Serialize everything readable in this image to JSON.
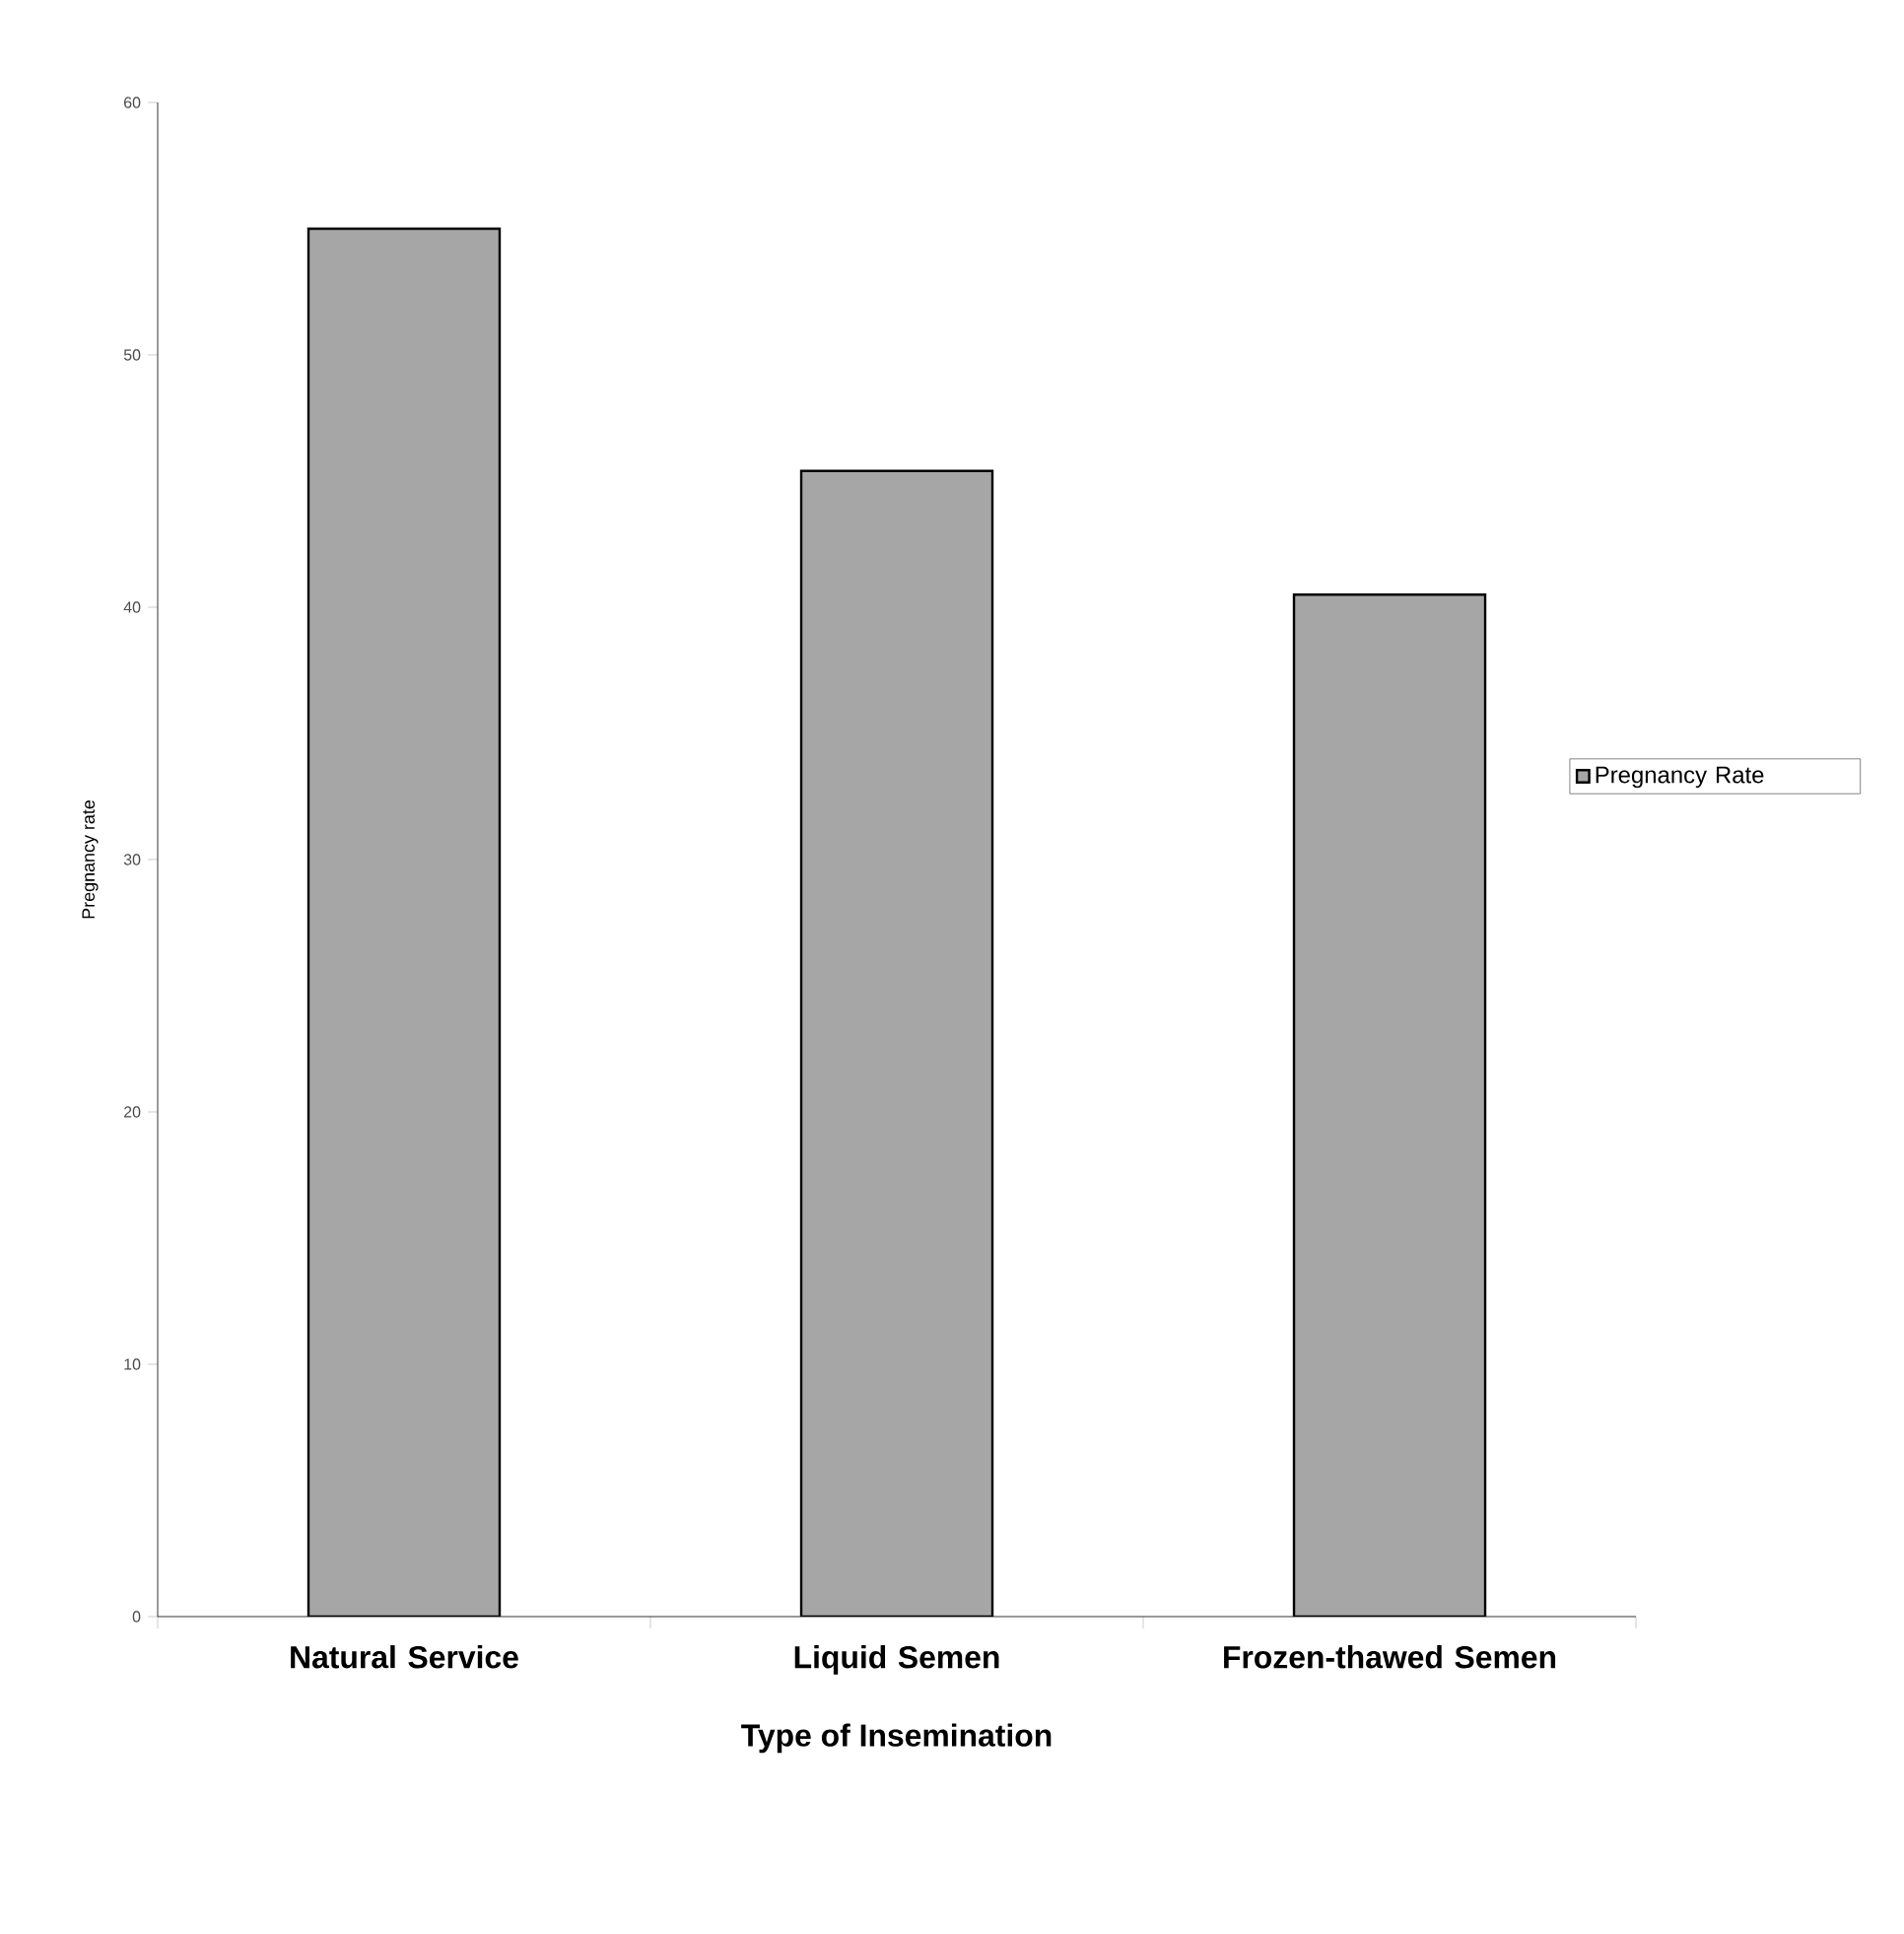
{
  "chart_data": {
    "type": "bar",
    "xlabel": "Type of Insemination",
    "ylabel": "Pregnancy rate",
    "categories": [
      "Natural Service",
      "Liquid Semen",
      "Frozen-thawed Semen"
    ],
    "series": [
      {
        "name": "Pregnancy Rate",
        "color": "#a6a6a6",
        "values": [
          55,
          45.4,
          40.5
        ]
      }
    ],
    "ylim": [
      0,
      60
    ],
    "yticks": [
      0,
      10,
      20,
      30,
      40,
      50,
      60
    ],
    "grid": false,
    "legend": "right"
  }
}
